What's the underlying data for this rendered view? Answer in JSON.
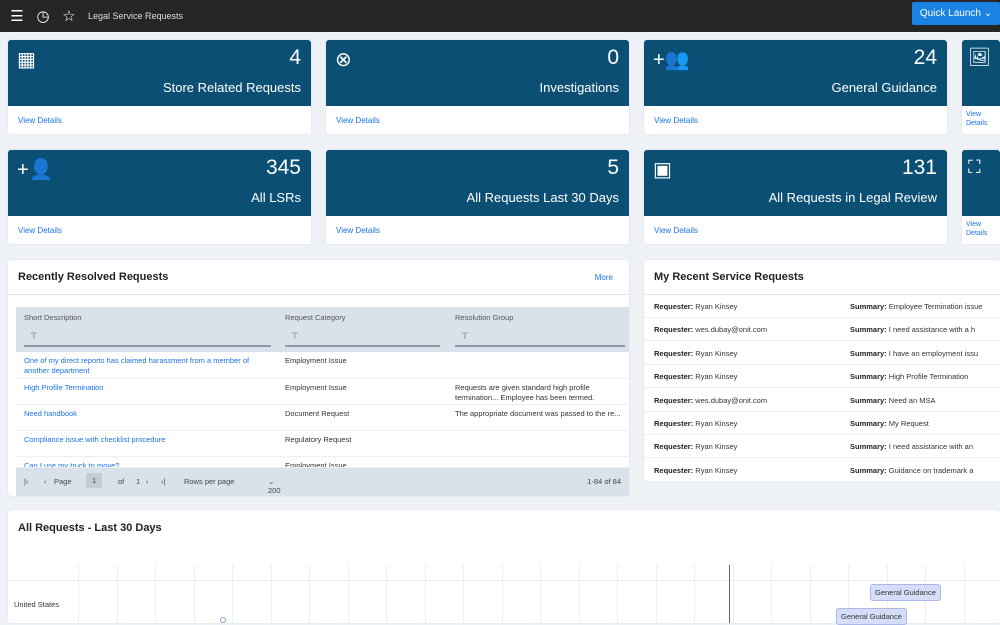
{
  "topbar": {
    "title": "Legal Service Requests",
    "quick_launch": "Quick Launch"
  },
  "cards": [
    {
      "value": "4",
      "label": "Store Related Requests",
      "icon": "calendar-icon",
      "link": "View Details"
    },
    {
      "value": "0",
      "label": "Investigations",
      "icon": "close-circle-icon",
      "link": "View Details"
    },
    {
      "value": "24",
      "label": "General Guidance",
      "icon": "group-add-icon",
      "link": "View Details"
    },
    {
      "value": "",
      "label": "",
      "icon": "photo-library-icon",
      "link": "View Details"
    },
    {
      "value": "345",
      "label": "All LSRs",
      "icon": "person-add-icon",
      "link": "View Details"
    },
    {
      "value": "5",
      "label": "All Requests Last 30 Days",
      "icon": "",
      "link": "View Details"
    },
    {
      "value": "131",
      "label": "All Requests in Legal Review",
      "icon": "badge-icon",
      "link": "View Details"
    },
    {
      "value": "",
      "label": "",
      "icon": "fullscreen-icon",
      "link": "View Details"
    }
  ],
  "resolved": {
    "title": "Recently Resolved Requests",
    "more": "More",
    "columns": [
      "Short Description",
      "Request Category",
      "Resolution Group"
    ],
    "rows": [
      {
        "desc": "One of my direct reports has claimed harassment from a member of another department",
        "category": "Employment Issue",
        "resolution": ""
      },
      {
        "desc": "High Profile Termination",
        "category": "Employment Issue",
        "resolution": "Requests are given standard high profile termination... Employee has been termed."
      },
      {
        "desc": "Need handbook",
        "category": "Document Request",
        "resolution": "The appropriate document was passed to the re..."
      },
      {
        "desc": "Compliance issue with checklist procedure",
        "category": "Regulatory Request",
        "resolution": ""
      },
      {
        "desc": "Can I use my truck to move?",
        "category": "Employment Issue",
        "resolution": ""
      }
    ],
    "footer": {
      "page_label": "Page",
      "page": "1",
      "of": "of",
      "total_pages": "1",
      "rows_per_page": "Rows per page",
      "rows_value": "200",
      "range": "1-84 of 84"
    }
  },
  "recent": {
    "title": "My Recent Service Requests",
    "requester_label": "Requester:",
    "summary_label": "Summary:",
    "rows": [
      {
        "requester": "Ryan Kinsey",
        "summary": "Employee Termination issue"
      },
      {
        "requester": "wes.dubay@onit.com",
        "summary": "I need assistance with a h"
      },
      {
        "requester": "Ryan Kinsey",
        "summary": "I have an employment issu"
      },
      {
        "requester": "Ryan Kinsey",
        "summary": "High Profile Termination"
      },
      {
        "requester": "wes.dubay@onit.com",
        "summary": "Need an MSA"
      },
      {
        "requester": "Ryan Kinsey",
        "summary": "My Request"
      },
      {
        "requester": "Ryan Kinsey",
        "summary": "I need assistance with an"
      },
      {
        "requester": "Ryan Kinsey",
        "summary": "Guidance on trademark a"
      }
    ]
  },
  "timeline": {
    "title": "All Requests - Last 30 Days",
    "group": "United States",
    "items": [
      "General Guidance",
      "General Guidance"
    ]
  }
}
